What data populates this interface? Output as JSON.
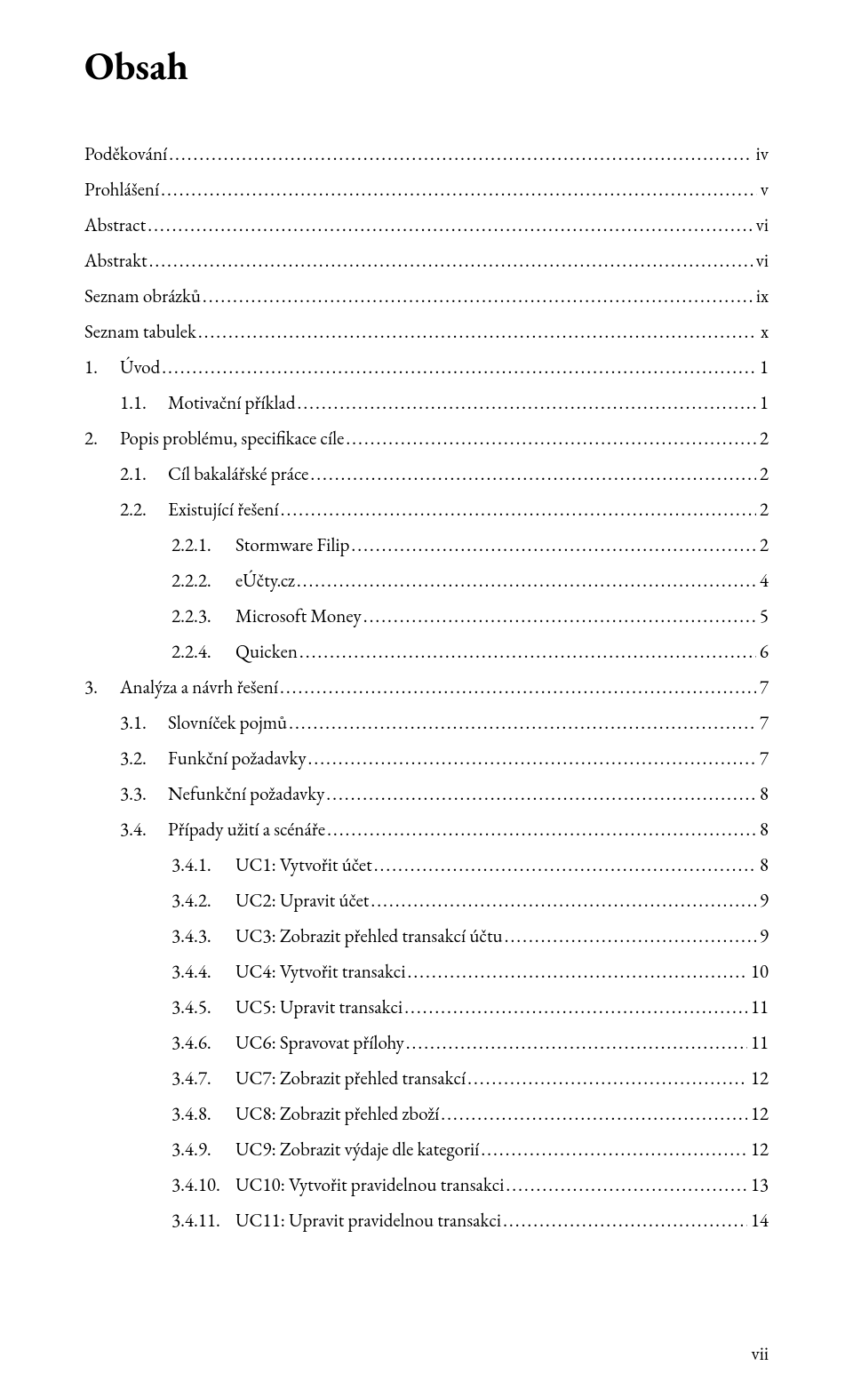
{
  "title": "Obsah",
  "footer_pagenum": "vii",
  "toc": [
    {
      "level": 0,
      "number": "",
      "label": "Poděkování",
      "page": "iv"
    },
    {
      "level": 0,
      "number": "",
      "label": "Prohlášení",
      "page": "v"
    },
    {
      "level": 0,
      "number": "",
      "label": "Abstract",
      "page": "vi"
    },
    {
      "level": 0,
      "number": "",
      "label": "Abstrakt",
      "page": "vi"
    },
    {
      "level": 0,
      "number": "",
      "label": "Seznam obrázků",
      "page": "ix"
    },
    {
      "level": 0,
      "number": "",
      "label": "Seznam tabulek",
      "page": "x"
    },
    {
      "level": 0,
      "number": "1.",
      "label": "Úvod",
      "page": "1"
    },
    {
      "level": 1,
      "number": "1.1.",
      "label": "Motivační příklad",
      "page": "1"
    },
    {
      "level": 0,
      "number": "2.",
      "label": "Popis problému, specifikace cíle",
      "page": "2"
    },
    {
      "level": 1,
      "number": "2.1.",
      "label": "Cíl bakalářské práce",
      "page": "2"
    },
    {
      "level": 1,
      "number": "2.2.",
      "label": "Existující řešení",
      "page": "2"
    },
    {
      "level": 2,
      "number": "2.2.1.",
      "label": "Stormware Filip",
      "page": "2"
    },
    {
      "level": 2,
      "number": "2.2.2.",
      "label": "eÚčty.cz",
      "page": "4"
    },
    {
      "level": 2,
      "number": "2.2.3.",
      "label": "Microsoft Money",
      "page": "5"
    },
    {
      "level": 2,
      "number": "2.2.4.",
      "label": "Quicken",
      "page": "6"
    },
    {
      "level": 0,
      "number": "3.",
      "label": "Analýza a návrh řešení",
      "page": "7"
    },
    {
      "level": 1,
      "number": "3.1.",
      "label": "Slovníček pojmů",
      "page": "7"
    },
    {
      "level": 1,
      "number": "3.2.",
      "label": "Funkční požadavky",
      "page": "7"
    },
    {
      "level": 1,
      "number": "3.3.",
      "label": "Nefunkční požadavky",
      "page": "8"
    },
    {
      "level": 1,
      "number": "3.4.",
      "label": "Případy užití a scénáře",
      "page": "8"
    },
    {
      "level": 2,
      "number": "3.4.1.",
      "label": "UC1: Vytvořit účet",
      "page": "8"
    },
    {
      "level": 2,
      "number": "3.4.2.",
      "label": "UC2: Upravit účet",
      "page": "9"
    },
    {
      "level": 2,
      "number": "3.4.3.",
      "label": "UC3: Zobrazit přehled transakcí účtu",
      "page": "9"
    },
    {
      "level": 2,
      "number": "3.4.4.",
      "label": "UC4: Vytvořit transakci",
      "page": "10"
    },
    {
      "level": 2,
      "number": "3.4.5.",
      "label": "UC5: Upravit transakci",
      "page": "11"
    },
    {
      "level": 2,
      "number": "3.4.6.",
      "label": "UC6: Spravovat přílohy",
      "page": "11"
    },
    {
      "level": 2,
      "number": "3.4.7.",
      "label": "UC7: Zobrazit přehled transakcí",
      "page": "12"
    },
    {
      "level": 2,
      "number": "3.4.8.",
      "label": "UC8: Zobrazit přehled zboží",
      "page": "12"
    },
    {
      "level": 2,
      "number": "3.4.9.",
      "label": "UC9: Zobrazit výdaje dle kategorií",
      "page": "12"
    },
    {
      "level": 2,
      "number": "3.4.10.",
      "label": "UC10: Vytvořit pravidelnou transakci",
      "page": "13"
    },
    {
      "level": 2,
      "number": "3.4.11.",
      "label": "UC11: Upravit pravidelnou transakci",
      "page": "14"
    }
  ]
}
